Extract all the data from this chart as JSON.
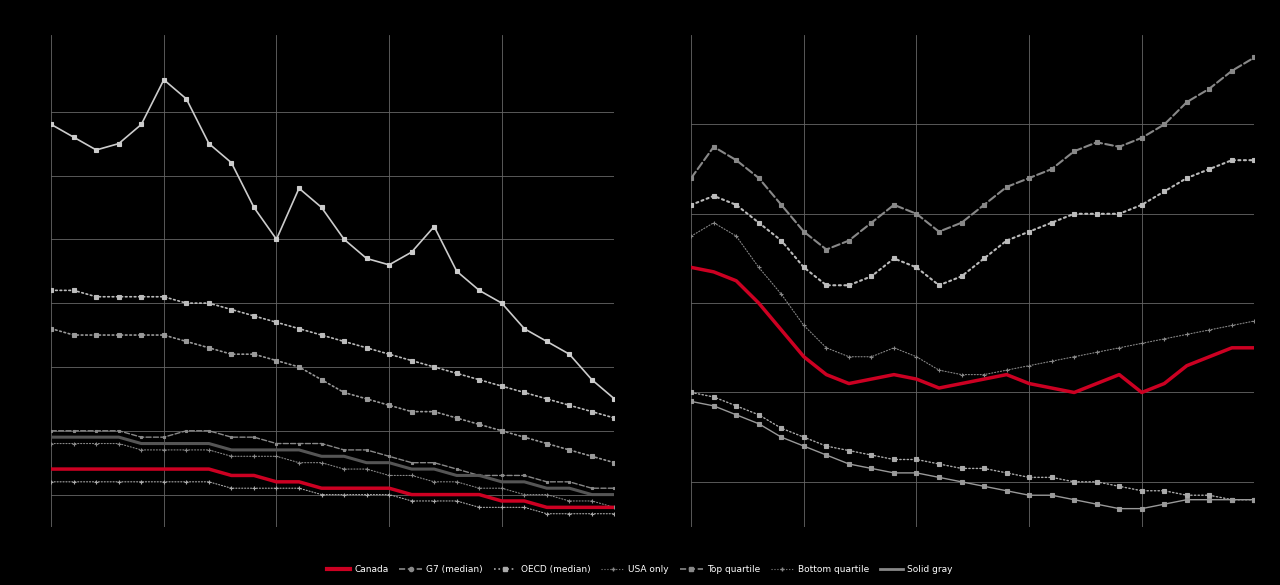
{
  "background_color": "#000000",
  "text_color": "#ffffff",
  "grid_color": "#666666",
  "left_chart": {
    "series": [
      {
        "name": "top_white_sq",
        "style": "solid",
        "color": "#cccccc",
        "marker": "s",
        "markersize": 2.5,
        "linewidth": 1.2,
        "y": [
          78,
          76,
          74,
          75,
          78,
          85,
          82,
          75,
          72,
          65,
          60,
          68,
          65,
          60,
          57,
          56,
          58,
          62,
          55,
          52,
          50,
          46,
          44,
          42,
          38,
          35
        ]
      },
      {
        "name": "mid_dotted_sq",
        "style": "dotted",
        "color": "#bbbbbb",
        "marker": "s",
        "markersize": 2.5,
        "linewidth": 1.2,
        "y": [
          52,
          52,
          51,
          51,
          51,
          51,
          50,
          50,
          49,
          48,
          47,
          46,
          45,
          44,
          43,
          42,
          41,
          40,
          39,
          38,
          37,
          36,
          35,
          34,
          33,
          32
        ]
      },
      {
        "name": "mid_dotted_sq2",
        "style": "dotted",
        "color": "#999999",
        "marker": "s",
        "markersize": 2.5,
        "linewidth": 1.2,
        "y": [
          46,
          45,
          45,
          45,
          45,
          45,
          44,
          43,
          42,
          42,
          41,
          40,
          38,
          36,
          35,
          34,
          33,
          33,
          32,
          31,
          30,
          29,
          28,
          27,
          26,
          25
        ]
      },
      {
        "name": "lower_dashed_sq",
        "style": "dashed",
        "color": "#888888",
        "marker": "s",
        "markersize": 2.0,
        "linewidth": 1.0,
        "y": [
          30,
          30,
          30,
          30,
          29,
          29,
          30,
          30,
          29,
          29,
          28,
          28,
          28,
          27,
          27,
          26,
          25,
          25,
          24,
          23,
          23,
          23,
          22,
          22,
          21,
          21
        ]
      },
      {
        "name": "lower_solid_dark",
        "style": "solid",
        "color": "#555555",
        "marker": null,
        "markersize": 0,
        "linewidth": 2.2,
        "y": [
          29,
          29,
          29,
          29,
          28,
          28,
          28,
          28,
          27,
          27,
          27,
          27,
          26,
          26,
          25,
          25,
          24,
          24,
          23,
          23,
          22,
          22,
          21,
          21,
          20,
          20
        ]
      },
      {
        "name": "lower_dotted_plus",
        "style": "dotted",
        "color": "#888888",
        "marker": "+",
        "markersize": 3.5,
        "linewidth": 0.8,
        "y": [
          28,
          28,
          28,
          28,
          27,
          27,
          27,
          27,
          26,
          26,
          26,
          25,
          25,
          24,
          24,
          23,
          23,
          22,
          22,
          21,
          21,
          20,
          20,
          19,
          19,
          18
        ]
      },
      {
        "name": "canada_red",
        "style": "solid",
        "color": "#cc0022",
        "marker": null,
        "markersize": 0,
        "linewidth": 2.5,
        "y": [
          24,
          24,
          24,
          24,
          24,
          24,
          24,
          24,
          23,
          23,
          22,
          22,
          21,
          21,
          21,
          21,
          20,
          20,
          20,
          20,
          19,
          19,
          18,
          18,
          18,
          18
        ]
      },
      {
        "name": "bottom_dotted_plus",
        "style": "dotted",
        "color": "#aaaaaa",
        "marker": "+",
        "markersize": 2.5,
        "linewidth": 0.8,
        "y": [
          22,
          22,
          22,
          22,
          22,
          22,
          22,
          22,
          21,
          21,
          21,
          21,
          20,
          20,
          20,
          20,
          19,
          19,
          19,
          18,
          18,
          18,
          17,
          17,
          17,
          17
        ]
      }
    ],
    "xlim": [
      0,
      25
    ],
    "ylim": [
      15,
      92
    ],
    "ytick_positions": [
      20,
      30,
      40,
      50,
      60,
      70,
      80
    ],
    "vgrid_positions": [
      0,
      5,
      10,
      15,
      20,
      25
    ],
    "n_points": 26
  },
  "right_chart": {
    "series": [
      {
        "name": "r_top_dashed",
        "style": "dashed",
        "color": "#888888",
        "marker": "s",
        "markersize": 2.5,
        "linewidth": 1.5,
        "y": [
          88,
          95,
          92,
          88,
          82,
          76,
          72,
          74,
          78,
          82,
          80,
          76,
          78,
          82,
          86,
          88,
          90,
          94,
          96,
          95,
          97,
          100,
          105,
          108,
          112,
          115
        ]
      },
      {
        "name": "r_upper_dotted_sq",
        "style": "dotted",
        "color": "#bbbbbb",
        "marker": "s",
        "markersize": 2.5,
        "linewidth": 1.5,
        "y": [
          82,
          84,
          82,
          78,
          74,
          68,
          64,
          64,
          66,
          70,
          68,
          64,
          66,
          70,
          74,
          76,
          78,
          80,
          80,
          80,
          82,
          85,
          88,
          90,
          92,
          92
        ]
      },
      {
        "name": "r_mid_dotted_plus",
        "style": "dotted",
        "color": "#888888",
        "marker": "+",
        "markersize": 3.5,
        "linewidth": 0.8,
        "y": [
          75,
          78,
          75,
          68,
          62,
          55,
          50,
          48,
          48,
          50,
          48,
          45,
          44,
          44,
          45,
          46,
          47,
          48,
          49,
          50,
          51,
          52,
          53,
          54,
          55,
          56
        ]
      },
      {
        "name": "r_canada_red",
        "style": "solid",
        "color": "#cc0022",
        "marker": null,
        "markersize": 0,
        "linewidth": 2.5,
        "y": [
          68,
          67,
          65,
          60,
          54,
          48,
          44,
          42,
          43,
          44,
          43,
          41,
          42,
          43,
          44,
          42,
          41,
          40,
          42,
          44,
          40,
          42,
          46,
          48,
          50,
          50
        ]
      },
      {
        "name": "r_lower_dotted_sq",
        "style": "dotted",
        "color": "#aaaaaa",
        "marker": "s",
        "markersize": 2.5,
        "linewidth": 1.0,
        "y": [
          40,
          39,
          37,
          35,
          32,
          30,
          28,
          27,
          26,
          25,
          25,
          24,
          23,
          23,
          22,
          21,
          21,
          20,
          20,
          19,
          18,
          18,
          17,
          17,
          16,
          16
        ]
      },
      {
        "name": "r_bottom_solid_sq",
        "style": "solid",
        "color": "#999999",
        "marker": "s",
        "markersize": 2.5,
        "linewidth": 1.0,
        "y": [
          38,
          37,
          35,
          33,
          30,
          28,
          26,
          24,
          23,
          22,
          22,
          21,
          20,
          19,
          18,
          17,
          17,
          16,
          15,
          14,
          14,
          15,
          16,
          16,
          16,
          16
        ]
      }
    ],
    "xlim": [
      0,
      25
    ],
    "ylim": [
      10,
      120
    ],
    "ytick_positions": [
      20,
      40,
      60,
      80,
      100
    ],
    "vgrid_positions": [
      0,
      5,
      10,
      15,
      20,
      25
    ],
    "n_points": 26
  },
  "legend_items": [
    {
      "label": "Canada",
      "color": "#cc0022",
      "style": "-",
      "marker": null,
      "linewidth": 3,
      "markersize": 0
    },
    {
      "label": "G7 (median)",
      "color": "#888888",
      "style": "--",
      "marker": "o",
      "linewidth": 1.2,
      "markersize": 3
    },
    {
      "label": "OECD (median)",
      "color": "#aaaaaa",
      "style": ":",
      "marker": "s",
      "linewidth": 1.2,
      "markersize": 3
    },
    {
      "label": "USA only",
      "color": "#888888",
      "style": ":",
      "marker": "+",
      "linewidth": 0.8,
      "markersize": 3
    },
    {
      "label": "Top quartile",
      "color": "#888888",
      "style": "--",
      "marker": "s",
      "linewidth": 1.2,
      "markersize": 3
    },
    {
      "label": "Bottom quartile",
      "color": "#888888",
      "style": ":",
      "marker": "+",
      "linewidth": 0.8,
      "markersize": 3
    },
    {
      "label": "Solid gray",
      "color": "#888888",
      "style": "-",
      "marker": null,
      "linewidth": 2,
      "markersize": 0
    }
  ]
}
